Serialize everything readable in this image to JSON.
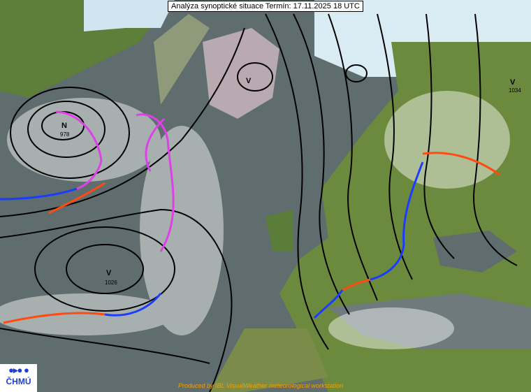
{
  "title": "Analýza synoptické situace Termín: 17.11.2025 18 UTC",
  "logo": {
    "symbol": "●▸● ●",
    "text": "ČHMÚ"
  },
  "credit": "Produced by IBL VisualWeather meteorological workstation",
  "pressure_centers": [
    {
      "type": "N",
      "value": "978"
    },
    {
      "type": "V",
      "value": "1026"
    },
    {
      "type": "V",
      "value": ""
    },
    {
      "type": "V",
      "value": "1034"
    }
  ],
  "colors": {
    "cold_front": "#1a3cff",
    "warm_front": "#ff4a10",
    "occluded_front": "#e040e8",
    "isobar": "#000000",
    "sea": "#5f6d6e",
    "land": "#6b8a3c",
    "ice": "#d8e8f0"
  }
}
